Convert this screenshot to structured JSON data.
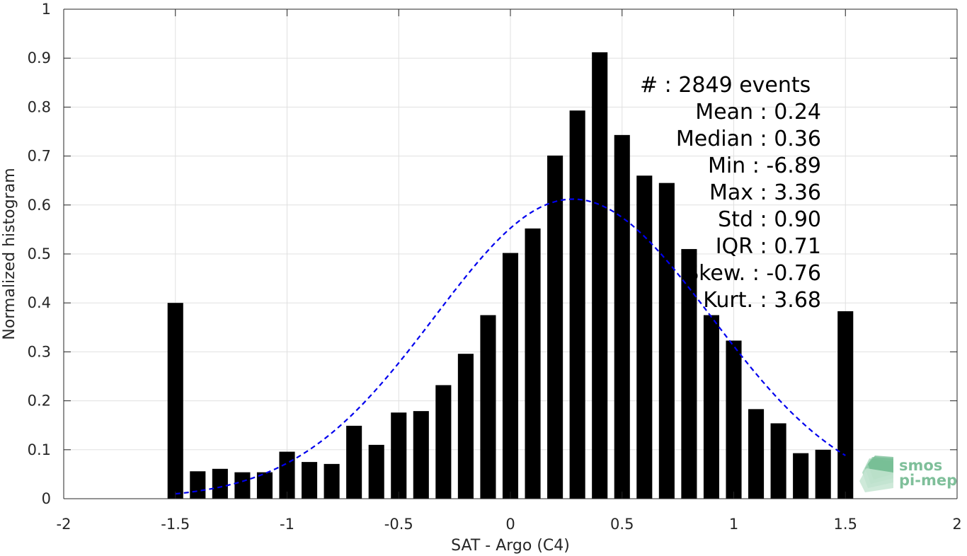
{
  "chart_data": {
    "type": "bar",
    "xlabel": "SAT - Argo (C4)",
    "ylabel": "Normalized histogram",
    "xlim": [
      -2,
      2
    ],
    "ylim": [
      0,
      1
    ],
    "xticks": [
      "-2",
      "-1.5",
      "-1",
      "-0.5",
      "0",
      "0.5",
      "1",
      "1.5",
      "2"
    ],
    "yticks": [
      "0",
      "0.1",
      "0.2",
      "0.3",
      "0.4",
      "0.5",
      "0.6",
      "0.7",
      "0.8",
      "0.9",
      "1"
    ],
    "grid": true,
    "bar_color": "#000000",
    "bin_width": 0.1,
    "x": [
      -1.5,
      -1.4,
      -1.3,
      -1.2,
      -1.1,
      -1.0,
      -0.9,
      -0.8,
      -0.7,
      -0.6,
      -0.5,
      -0.4,
      -0.3,
      -0.2,
      -0.1,
      0.0,
      0.1,
      0.2,
      0.3,
      0.4,
      0.5,
      0.6,
      0.7,
      0.8,
      0.9,
      1.0,
      1.1,
      1.2,
      1.3,
      1.4,
      1.5
    ],
    "values": [
      0.4,
      0.056,
      0.061,
      0.054,
      0.054,
      0.096,
      0.075,
      0.071,
      0.149,
      0.11,
      0.176,
      0.179,
      0.232,
      0.296,
      0.375,
      0.502,
      0.552,
      0.701,
      0.793,
      0.912,
      0.743,
      0.66,
      0.645,
      0.51,
      0.375,
      0.323,
      0.183,
      0.154,
      0.093,
      0.1,
      0.383
    ],
    "fit_curve": {
      "type": "gaussian",
      "color": "#0000ee",
      "style": "dashed",
      "x_range": [
        -1.5,
        1.5
      ],
      "peak": 0.612,
      "mean": 0.28,
      "sigma": 0.62
    },
    "stats": [
      {
        "label": "#",
        "value": ": 2849 events"
      },
      {
        "label": "Mean",
        "value": ": 0.24"
      },
      {
        "label": "Median",
        "value": ": 0.36"
      },
      {
        "label": "Min",
        "value": ": -6.89"
      },
      {
        "label": "Max",
        "value": ": 3.36"
      },
      {
        "label": "Std",
        "value": ": 0.90"
      },
      {
        "label": "IQR",
        "value": ": 0.71"
      },
      {
        "label": "Skew.",
        "value": ": -0.76"
      },
      {
        "label": "Kurt.",
        "value": ": 3.68"
      }
    ]
  },
  "logo": {
    "line1": "smos",
    "line2": "pi-mep",
    "color": "#7fbf9a"
  }
}
